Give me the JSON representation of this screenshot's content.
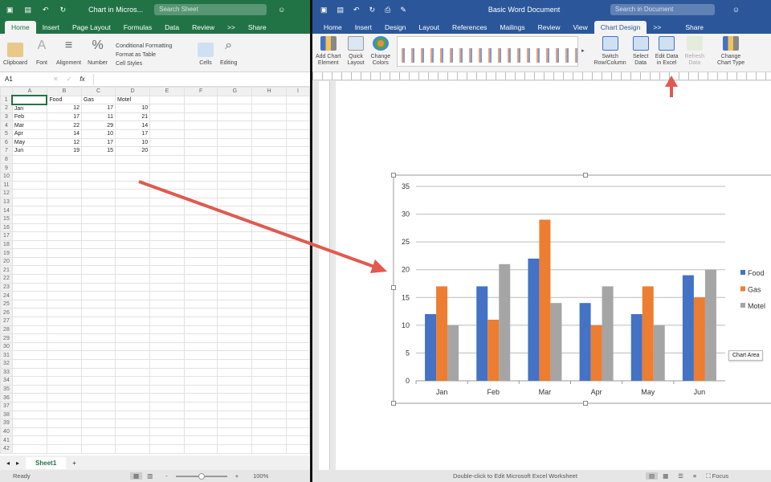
{
  "excel": {
    "title": "Chart in Micros...",
    "search_placeholder": "Search Sheet",
    "tabs": [
      "Home",
      "Insert",
      "Page Layout",
      "Formulas",
      "Data",
      "Review",
      ">>"
    ],
    "share": "Share",
    "ribbon": {
      "clipboard": "Clipboard",
      "font": "Font",
      "alignment": "Alignment",
      "number": "Number",
      "conditional": "Conditional Formatting",
      "format_table": "Format as Table",
      "cell_styles": "Cell Styles",
      "cells": "Cells",
      "editing": "Editing"
    },
    "name_box": "A1",
    "fx": "fx",
    "columns": [
      "A",
      "B",
      "C",
      "D",
      "E",
      "F",
      "G",
      "H",
      "I"
    ],
    "rows": [
      [
        "",
        "Food",
        "Gas",
        "Motel"
      ],
      [
        "Jan",
        "12",
        "17",
        "10"
      ],
      [
        "Feb",
        "17",
        "11",
        "21"
      ],
      [
        "Mar",
        "22",
        "29",
        "14"
      ],
      [
        "Apr",
        "14",
        "10",
        "17"
      ],
      [
        "May",
        "12",
        "17",
        "10"
      ],
      [
        "Jun",
        "19",
        "15",
        "20"
      ]
    ],
    "row_count": 42,
    "sheet_tab": "Sheet1",
    "status": "Ready",
    "zoom": "100%",
    "zoom_level": 0.5
  },
  "word": {
    "title": "Basic Word Document",
    "search_placeholder": "Search in Document",
    "tabs": [
      "Home",
      "Insert",
      "Design",
      "Layout",
      "References",
      "Mailings",
      "Review",
      "View",
      "Chart Design",
      ">>"
    ],
    "share": "Share",
    "ribbon": {
      "add_chart": [
        "Add Chart",
        "Element"
      ],
      "quick_layout": [
        "Quick",
        "Layout"
      ],
      "change_colors": [
        "Change",
        "Colors"
      ],
      "switch": [
        "Switch",
        "Row/Column"
      ],
      "select": [
        "Select",
        "Data"
      ],
      "edit": [
        "Edit Data",
        "in Excel"
      ],
      "refresh": [
        "Refresh",
        "Data"
      ],
      "change_type": [
        "Change",
        "Chart Type"
      ]
    },
    "status": "Double-click to Edit Microsoft Excel Worksheet",
    "focus": "Focus",
    "tooltip": "Chart Area"
  },
  "chart_data": {
    "type": "bar",
    "categories": [
      "Jan",
      "Feb",
      "Mar",
      "Apr",
      "May",
      "Jun"
    ],
    "series": [
      {
        "name": "Food",
        "values": [
          12,
          17,
          22,
          14,
          12,
          19
        ],
        "color": "#4472c4"
      },
      {
        "name": "Gas",
        "values": [
          17,
          11,
          29,
          10,
          17,
          15
        ],
        "color": "#ed7d31"
      },
      {
        "name": "Motel",
        "values": [
          10,
          21,
          14,
          17,
          10,
          20
        ],
        "color": "#a5a5a5"
      }
    ],
    "ylim": [
      0,
      35
    ],
    "yticks": [
      0,
      5,
      10,
      15,
      20,
      25,
      30,
      35
    ],
    "grid": true,
    "legend": "right"
  },
  "colors": {
    "excel": "#217346",
    "word": "#2b579a",
    "arrow": "#e05a4f"
  }
}
